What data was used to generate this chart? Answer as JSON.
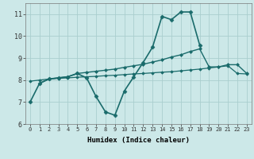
{
  "xlabel": "Humidex (Indice chaleur)",
  "background_color": "#cce8e8",
  "grid_color": "#aacece",
  "line_color": "#1a6b6b",
  "xlim": [
    -0.5,
    23.5
  ],
  "ylim": [
    6.0,
    11.5
  ],
  "yticks": [
    6,
    7,
    8,
    9,
    10,
    11
  ],
  "xticks": [
    0,
    1,
    2,
    3,
    4,
    5,
    6,
    7,
    8,
    9,
    10,
    11,
    12,
    13,
    14,
    15,
    16,
    17,
    18,
    19,
    20,
    21,
    22,
    23
  ],
  "series": [
    {
      "x": [
        0,
        1,
        2,
        3,
        4,
        5,
        6,
        7,
        8,
        9,
        10,
        11,
        12,
        13,
        14,
        15,
        16,
        17,
        18
      ],
      "y": [
        7.0,
        7.85,
        8.05,
        8.1,
        8.15,
        8.3,
        8.1,
        7.25,
        6.55,
        6.4,
        7.5,
        8.15,
        8.8,
        9.5,
        10.9,
        10.75,
        11.1,
        11.1,
        9.6
      ],
      "marker": "D",
      "markersize": 2.5,
      "linewidth": 1.2
    },
    {
      "x": [
        1,
        2,
        3,
        4,
        5,
        6,
        7,
        8,
        9,
        10,
        11,
        12,
        13,
        14,
        15,
        16,
        17,
        18,
        19,
        20,
        21,
        22,
        23
      ],
      "y": [
        7.85,
        8.05,
        8.1,
        8.15,
        8.3,
        8.35,
        8.4,
        8.45,
        8.5,
        8.58,
        8.65,
        8.72,
        8.82,
        8.92,
        9.05,
        9.15,
        9.3,
        9.42,
        8.6,
        8.6,
        8.7,
        8.7,
        8.3
      ],
      "marker": "D",
      "markersize": 2.0,
      "linewidth": 1.0
    },
    {
      "x": [
        0,
        1,
        2,
        3,
        4,
        5,
        6,
        7,
        8,
        9,
        10,
        11,
        12,
        13,
        14,
        15,
        16,
        17,
        18,
        19,
        20,
        21,
        22,
        23
      ],
      "y": [
        7.95,
        8.0,
        8.05,
        8.08,
        8.1,
        8.13,
        8.15,
        8.17,
        8.2,
        8.22,
        8.25,
        8.28,
        8.3,
        8.33,
        8.36,
        8.38,
        8.42,
        8.46,
        8.5,
        8.55,
        8.6,
        8.65,
        8.3,
        8.28
      ],
      "marker": "D",
      "markersize": 1.8,
      "linewidth": 0.9
    }
  ]
}
